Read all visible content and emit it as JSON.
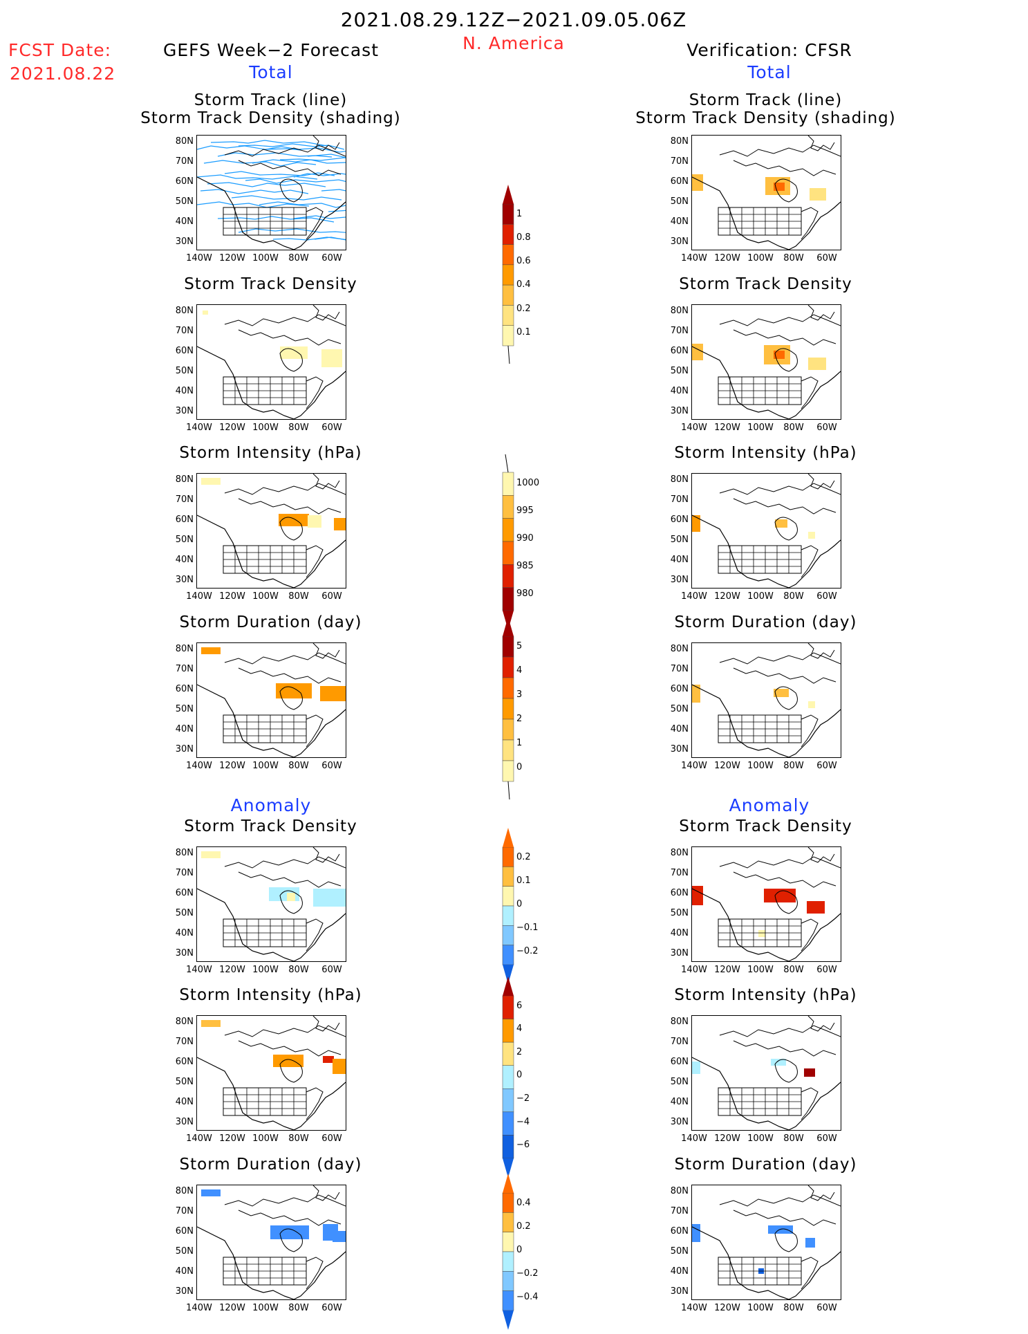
{
  "header": {
    "date_range": "2021.08.29.12Z−2021.09.05.06Z",
    "region": "N. America",
    "fcst_label": "FCST Date:",
    "fcst_date": "2021.08.22",
    "left_title": "GEFS Week−2 Forecast",
    "right_title": "Verification: CFSR",
    "total_label": "Total",
    "anomaly_label": "Anomaly"
  },
  "panel_titles": {
    "track_line": "Storm Track (line)",
    "track_shading": "Storm Track Density (shading)",
    "density": "Storm Track Density",
    "intensity": "Storm Intensity (hPa)",
    "duration": "Storm Duration (day)"
  },
  "axes": {
    "y_ticks": [
      "80N",
      "70N",
      "60N",
      "50N",
      "40N",
      "30N"
    ],
    "x_ticks": [
      "140W",
      "120W",
      "100W",
      "80W",
      "60W"
    ]
  },
  "colorbars": {
    "density_total": [
      "1",
      "0.8",
      "0.6",
      "0.4",
      "0.2",
      "0.1"
    ],
    "intensity_total": [
      "1000",
      "995",
      "990",
      "985",
      "980"
    ],
    "duration_total": [
      "5",
      "4",
      "3",
      "2",
      "1",
      "0"
    ],
    "density_anom": [
      "0.2",
      "0.1",
      "0",
      "−0.1",
      "−0.2"
    ],
    "intensity_anom": [
      "6",
      "4",
      "2",
      "0",
      "−2",
      "−4",
      "−6"
    ],
    "duration_anom": [
      "0.4",
      "0.2",
      "0",
      "−0.2",
      "−0.4"
    ]
  },
  "colors": {
    "warm": [
      "#fff7b0",
      "#ffe380",
      "#ffbf40",
      "#ff9a00",
      "#ff6a00",
      "#e02000",
      "#a00000"
    ],
    "cool": [
      "#b0f0ff",
      "#80c8ff",
      "#4090ff",
      "#1060e0"
    ],
    "track_line": "#1a9cff",
    "title_red": "#ff2a2a",
    "title_blue": "#1a3cff"
  }
}
